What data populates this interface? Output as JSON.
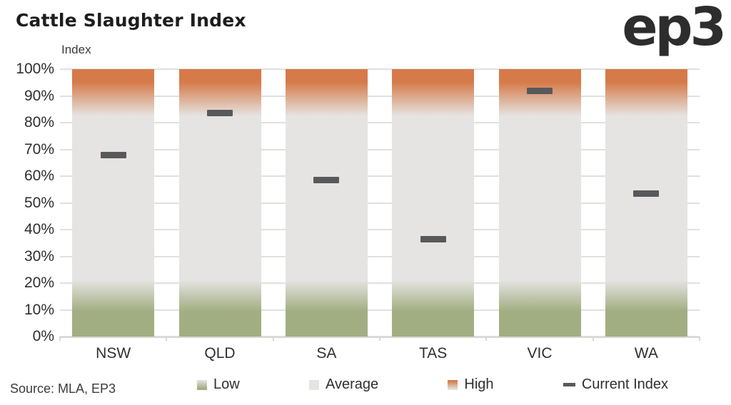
{
  "header": {
    "title": "Cattle Slaughter Index",
    "logo_text": "ep3"
  },
  "chart_data": {
    "type": "bar",
    "title": "Cattle Slaughter Index",
    "y_axis_title": "Index",
    "categories": [
      "NSW",
      "QLD",
      "SA",
      "TAS",
      "VIC",
      "WA"
    ],
    "series": [
      {
        "name": "Current Index",
        "values": [
          68,
          83.5,
          58.5,
          36.5,
          92,
          53.5
        ]
      }
    ],
    "bands": [
      {
        "name": "Low",
        "range": [
          0,
          20
        ],
        "color": "#a2ae82"
      },
      {
        "name": "Average",
        "range": [
          20,
          80
        ],
        "color": "#e5e4e2"
      },
      {
        "name": "High",
        "range": [
          80,
          100
        ],
        "color": "#d57a48"
      }
    ],
    "marker_color": "#58595b",
    "ylim": [
      0,
      100
    ],
    "ytick_step": 10,
    "ytick_labels": [
      "0%",
      "10%",
      "20%",
      "30%",
      "40%",
      "50%",
      "60%",
      "70%",
      "80%",
      "90%",
      "100%"
    ],
    "grid": true,
    "legend_position": "bottom"
  },
  "legend": {
    "items": [
      {
        "label": "Low",
        "swatch": "gradient-low"
      },
      {
        "label": "Average",
        "swatch": "solid-average"
      },
      {
        "label": "High",
        "swatch": "gradient-high"
      },
      {
        "label": "Current Index",
        "swatch": "dash"
      }
    ]
  },
  "footer": {
    "source": "Source: MLA, EP3"
  }
}
